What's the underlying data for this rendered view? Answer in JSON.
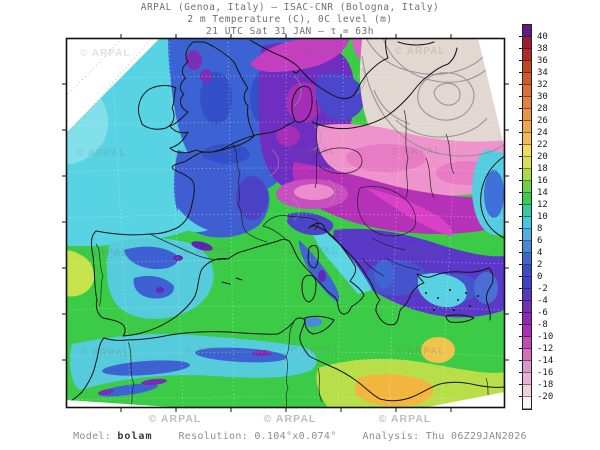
{
  "header": {
    "line1": "ARPAL (Genoa, Italy)  –  ISAC-CNR (Bologna, Italy)",
    "line2": "2 m Temperature (C), 0C level (m)",
    "line3": "21 UTC Sat 31 JAN  –  τ = 63h"
  },
  "footer": {
    "model_label": "Model:",
    "model_value": "bolam",
    "resolution_label": "Resolution:",
    "resolution_value": "0.104°x0.074°",
    "analysis_label": "Analysis:",
    "analysis_value": "Thu 06Z29JAN2026"
  },
  "watermark": {
    "text": "© ARPAL"
  },
  "colorbar": {
    "title": "2 m Temperature (C)",
    "unit": "C",
    "ticks": [
      40,
      38,
      36,
      34,
      32,
      30,
      28,
      26,
      24,
      22,
      20,
      18,
      16,
      14,
      12,
      10,
      8,
      6,
      4,
      2,
      0,
      -2,
      -4,
      -6,
      -8,
      -10,
      -12,
      -14,
      -16,
      -18,
      -20
    ],
    "segment_colors_top_to_bottom": [
      "#5e1a86",
      "#9c1c34",
      "#ad2b28",
      "#c04426",
      "#cf5a30",
      "#da6f38",
      "#e18140",
      "#e79348",
      "#eba750",
      "#f0bc58",
      "#f2dc60",
      "#d5e158",
      "#a8da4e",
      "#6ed04a",
      "#3bca54",
      "#3cc8a0",
      "#47c6dc",
      "#55ace0",
      "#4a88d6",
      "#4066ce",
      "#3c4cc6",
      "#4442c4",
      "#5936c0",
      "#7030b8",
      "#8c2ab2",
      "#aa30b2",
      "#c34ab8",
      "#d270bc",
      "#dd97c8",
      "#e6b4d2",
      "#efd2dc",
      "#faf5f4"
    ]
  }
}
